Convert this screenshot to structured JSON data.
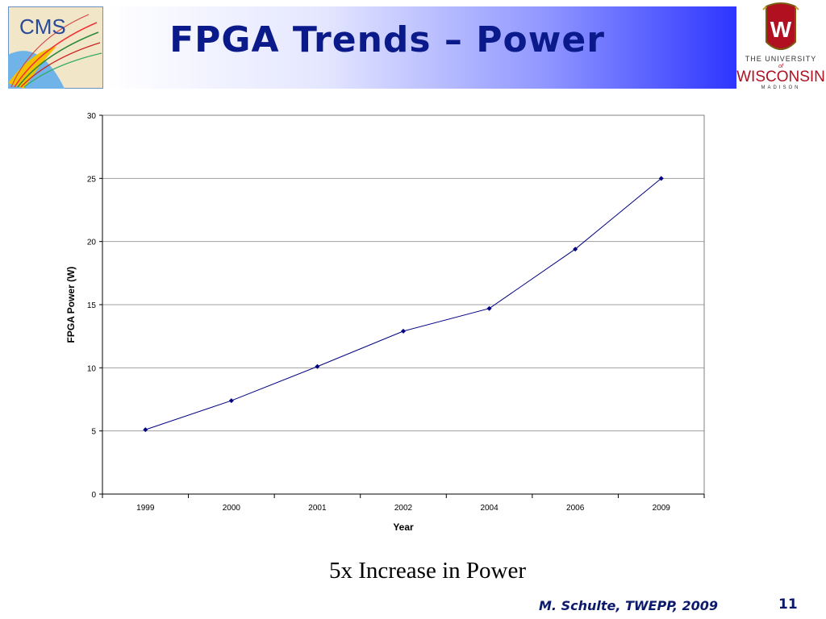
{
  "header": {
    "title": "FPGA Trends – Power",
    "cms_logo_text": "CMS",
    "uw_logo": {
      "line1": "THE UNIVERSITY",
      "line2": "of",
      "line3": "WISCONSIN",
      "line4": "MADISON",
      "crest_letter": "W"
    }
  },
  "chart_data": {
    "type": "line",
    "title": "",
    "xlabel": "Year",
    "ylabel": "FPGA Power (W)",
    "categories": [
      "1999",
      "2000",
      "2001",
      "2002",
      "2004",
      "2006",
      "2009"
    ],
    "series": [
      {
        "name": "",
        "values": [
          5.1,
          7.4,
          10.1,
          12.9,
          14.7,
          19.4,
          25.0
        ],
        "color": "#000080"
      }
    ],
    "ylim": [
      0,
      30
    ],
    "yticks": [
      0,
      5,
      10,
      15,
      20,
      25,
      30
    ],
    "grid": true,
    "legend": "none"
  },
  "caption": "5x Increase in Power",
  "footer": {
    "author": "M. Schulte, TWEPP, 2009",
    "page": "11"
  }
}
